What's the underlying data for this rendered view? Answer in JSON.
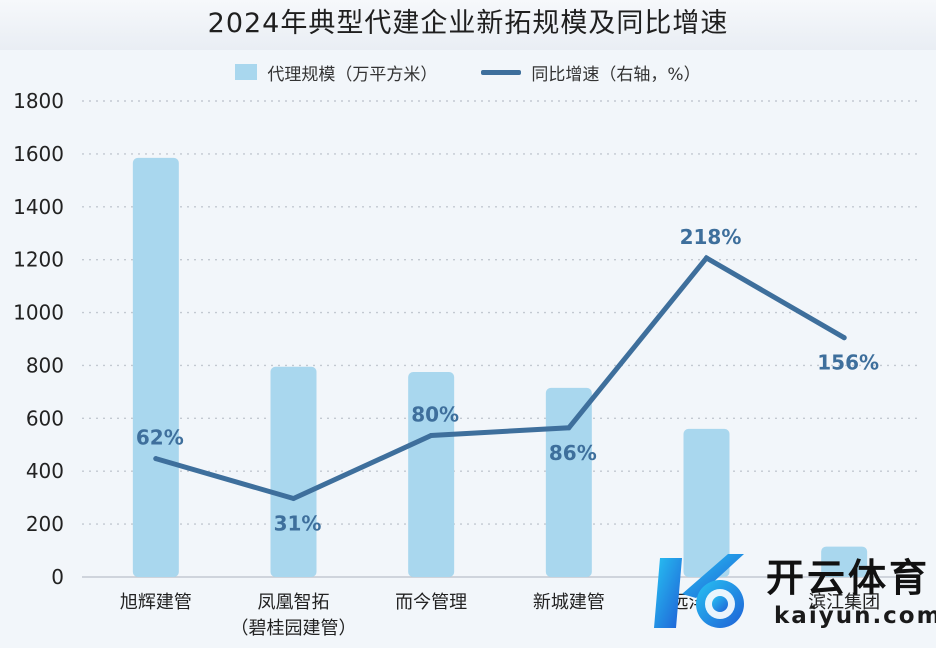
{
  "chart_data": {
    "type": "bar",
    "title": "2024年典型代建企业新拓规模及同比增速",
    "categories": [
      "旭辉建管",
      "凤凰智拓\n（碧桂园建管）",
      "而今管理",
      "新城建管",
      "远洋建管",
      "滨江集团"
    ],
    "series": [
      {
        "name": "代理规模（万平方米）",
        "type": "bar",
        "axis": "left",
        "color": "#a9d7ee",
        "values": [
          1585,
          795,
          775,
          715,
          560,
          115
        ]
      },
      {
        "name": "同比增速（右轴，%）",
        "type": "line",
        "axis": "right",
        "color": "#3e6f9c",
        "values": [
          62,
          31,
          80,
          86,
          218,
          156
        ],
        "labels": [
          "62%",
          "31%",
          "80%",
          "86%",
          "218%",
          "156%"
        ]
      }
    ],
    "y_left": {
      "min": 0,
      "max": 1800,
      "ticks": [
        0,
        200,
        400,
        600,
        800,
        1000,
        1200,
        1400,
        1600,
        1800
      ]
    },
    "grid": "horizontal-dotted",
    "legend_position": "top-center"
  },
  "watermark": {
    "brand": "开云体育",
    "domain": "kaiyun.com"
  }
}
